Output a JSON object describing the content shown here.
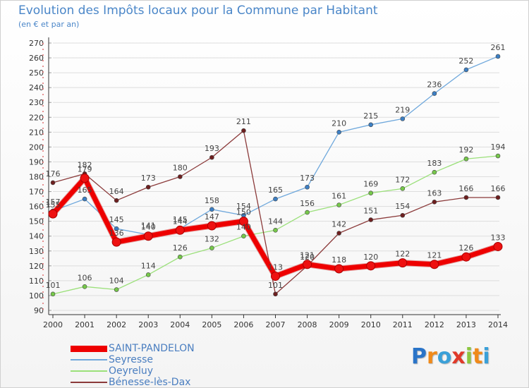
{
  "header": {
    "title": "Evolution des Impôts locaux pour la Commune par Habitant",
    "subtitle": "(en € et par an)"
  },
  "logo": {
    "letters": [
      "P",
      "r",
      "o",
      "x",
      "i",
      "t",
      "i"
    ]
  },
  "chart_data": {
    "type": "line",
    "title": "Evolution des Impôts locaux pour la Commune par Habitant",
    "subtitle": "(en € et par an)",
    "xlabel": "",
    "ylabel": "",
    "categories": [
      "2000",
      "2001",
      "2002",
      "2003",
      "2004",
      "2005",
      "2006",
      "2007",
      "2008",
      "2009",
      "2010",
      "2011",
      "2012",
      "2013",
      "2014"
    ],
    "ylim": [
      90,
      270
    ],
    "yticks": [
      90,
      100,
      110,
      120,
      130,
      140,
      150,
      160,
      170,
      180,
      190,
      200,
      210,
      220,
      230,
      240,
      250,
      260,
      270
    ],
    "grid": true,
    "legend_position": "bottom-left",
    "series": [
      {
        "name": "SAINT-PANDELON",
        "color": "#ee0000",
        "marker": "#dd0000",
        "bold": true,
        "values": [
          155,
          179,
          136,
          140,
          144,
          147,
          150,
          113,
          121,
          118,
          120,
          122,
          121,
          126,
          133
        ]
      },
      {
        "name": "Seyresse",
        "color": "#6fa8dc",
        "marker": "#3c7fc4",
        "bold": false,
        "values": [
          157,
          165,
          145,
          141,
          145,
          158,
          154,
          165,
          173,
          210,
          215,
          219,
          236,
          252,
          261
        ]
      },
      {
        "name": "Oeyreluy",
        "color": "#9be07a",
        "marker": "#76c84a",
        "bold": false,
        "values": [
          101,
          106,
          104,
          114,
          126,
          132,
          140,
          144,
          156,
          161,
          169,
          172,
          183,
          192,
          194
        ]
      },
      {
        "name": "Bénesse-lès-Dax",
        "color": "#8b3a3a",
        "marker": "#6e1f1f",
        "bold": false,
        "values": [
          176,
          182,
          164,
          173,
          180,
          193,
          211,
          101,
          120,
          142,
          151,
          154,
          163,
          166,
          166
        ]
      }
    ]
  },
  "colors": {
    "title": "#4a86c8",
    "grid": "#dddddd",
    "axis": "#333333"
  }
}
